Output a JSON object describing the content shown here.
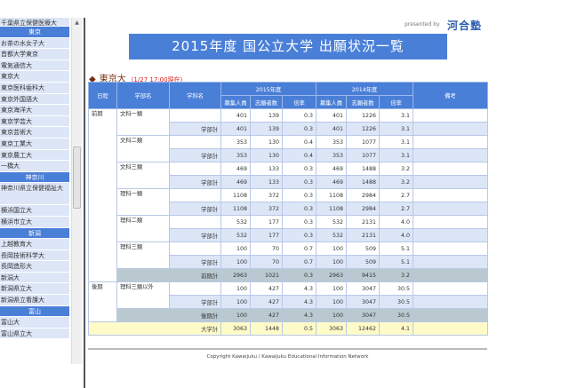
{
  "sidebar": {
    "top_partial": "千葉県立保健医療大",
    "groups": [
      {
        "header": "東京",
        "items": [
          "お茶の水女子大",
          "首都大学東京",
          "電気通信大",
          "東京大",
          "東京医科歯科大",
          "東京外国語大",
          "東京海洋大",
          "東京学芸大",
          "東京芸術大",
          "東京工業大",
          "東京農工大",
          "一橋大"
        ]
      },
      {
        "header": "神奈川",
        "items": [
          "神奈川県立保健福祉大",
          "横浜国立大",
          "横浜市立大"
        ]
      },
      {
        "header": "新潟",
        "items": [
          "上越教育大",
          "長岡技術科学大",
          "長岡造形大",
          "新潟大",
          "新潟県立大",
          "新潟県立看護大"
        ]
      },
      {
        "header": "富山",
        "items": [
          "富山大",
          "富山県立大"
        ]
      }
    ]
  },
  "header": {
    "presented_by": "presented by",
    "logo": "河合塾",
    "title": "2015年度 国公立大学 出願状況一覧"
  },
  "university": {
    "name": "東京大",
    "as_of": "(1/27 17:00現在)"
  },
  "table": {
    "headers": {
      "schedule": "日程",
      "faculty": "学部名",
      "department": "学科名",
      "y2015": "2015年度",
      "y2014": "2014年度",
      "remarks": "備考",
      "capacity": "募集人員",
      "applicants": "志願者数",
      "ratio": "倍率"
    },
    "rows": [
      {
        "type": "row",
        "schedule": "前期",
        "faculty": "文科一類",
        "label": "",
        "v": [
          "401",
          "139",
          "0.3",
          "401",
          "1226",
          "3.1"
        ]
      },
      {
        "type": "sub",
        "label": "学部計",
        "v": [
          "401",
          "139",
          "0.3",
          "401",
          "1226",
          "3.1"
        ]
      },
      {
        "type": "row",
        "faculty": "文科二類",
        "label": "",
        "v": [
          "353",
          "130",
          "0.4",
          "353",
          "1077",
          "3.1"
        ]
      },
      {
        "type": "sub",
        "label": "学部計",
        "v": [
          "353",
          "130",
          "0.4",
          "353",
          "1077",
          "3.1"
        ]
      },
      {
        "type": "row",
        "faculty": "文科三類",
        "label": "",
        "v": [
          "469",
          "133",
          "0.3",
          "469",
          "1488",
          "3.2"
        ]
      },
      {
        "type": "sub",
        "label": "学部計",
        "v": [
          "469",
          "133",
          "0.3",
          "469",
          "1488",
          "3.2"
        ]
      },
      {
        "type": "row",
        "faculty": "理科一類",
        "label": "",
        "v": [
          "1108",
          "372",
          "0.3",
          "1108",
          "2984",
          "2.7"
        ]
      },
      {
        "type": "sub",
        "label": "学部計",
        "v": [
          "1108",
          "372",
          "0.3",
          "1108",
          "2984",
          "2.7"
        ]
      },
      {
        "type": "row",
        "faculty": "理科二類",
        "label": "",
        "v": [
          "532",
          "177",
          "0.3",
          "532",
          "2131",
          "4.0"
        ]
      },
      {
        "type": "sub",
        "label": "学部計",
        "v": [
          "532",
          "177",
          "0.3",
          "532",
          "2131",
          "4.0"
        ]
      },
      {
        "type": "row",
        "faculty": "理科三類",
        "label": "",
        "v": [
          "100",
          "70",
          "0.7",
          "100",
          "509",
          "5.1"
        ]
      },
      {
        "type": "sub",
        "label": "学部計",
        "v": [
          "100",
          "70",
          "0.7",
          "100",
          "509",
          "5.1"
        ]
      },
      {
        "type": "term",
        "label": "前期計",
        "v": [
          "2963",
          "1021",
          "0.3",
          "2963",
          "9415",
          "3.2"
        ]
      },
      {
        "type": "row",
        "schedule": "後期",
        "faculty": "理科三類以外",
        "label": "",
        "v": [
          "100",
          "427",
          "4.3",
          "100",
          "3047",
          "30.5"
        ]
      },
      {
        "type": "sub",
        "label": "学部計",
        "v": [
          "100",
          "427",
          "4.3",
          "100",
          "3047",
          "30.5"
        ]
      },
      {
        "type": "term",
        "label": "後期計",
        "v": [
          "100",
          "427",
          "4.3",
          "100",
          "3047",
          "30.5"
        ]
      },
      {
        "type": "total",
        "label": "大学計",
        "v": [
          "3063",
          "1448",
          "0.5",
          "3063",
          "12462",
          "4.1"
        ]
      }
    ]
  },
  "footer": {
    "copyright": "Copyright Kawaijuku / Kawaijuku Educational Information Network"
  },
  "colors": {
    "accent": "#4a7fd8",
    "sub_row": "#dce6f7",
    "term_row": "#b9c9cf",
    "total_row": "#fffbc8",
    "date": "#e02020"
  }
}
